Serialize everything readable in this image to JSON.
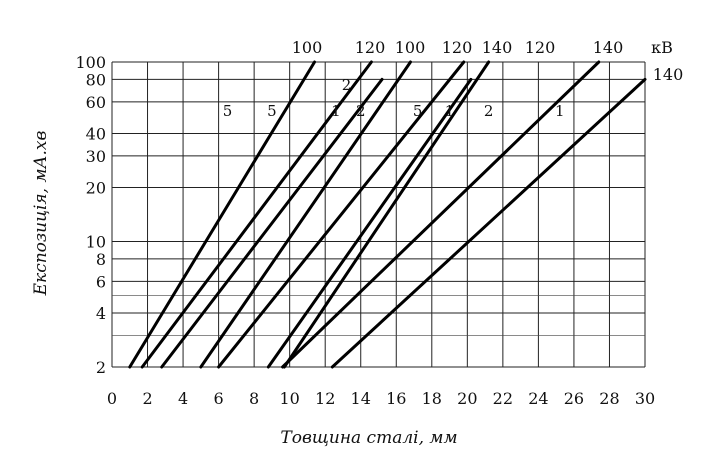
{
  "chart_data": {
    "type": "line",
    "xlabel": "Товщина сталі, мм",
    "ylabel": "Експозиція, мА.хв",
    "x_scale": "linear",
    "y_scale": "log",
    "xlim": [
      0,
      30
    ],
    "ylim": [
      2,
      100
    ],
    "grid": true,
    "x_ticks": [
      "0",
      "2",
      "4",
      "6",
      "8",
      "10",
      "12",
      "14",
      "16",
      "18",
      "20",
      "22",
      "24",
      "26",
      "28",
      "30"
    ],
    "y_ticks": [
      {
        "value": 2,
        "label": "2"
      },
      {
        "value": 4,
        "label": "4"
      },
      {
        "value": 6,
        "label": "6"
      },
      {
        "value": 8,
        "label": "8"
      },
      {
        "value": 10,
        "label": "10"
      },
      {
        "value": 20,
        "label": "20"
      },
      {
        "value": 30,
        "label": "30"
      },
      {
        "value": 40,
        "label": "40"
      },
      {
        "value": 60,
        "label": "60"
      },
      {
        "value": 80,
        "label": "80"
      },
      {
        "value": 100,
        "label": "100"
      }
    ],
    "kv_unit": "кВ",
    "series": [
      {
        "label_number": "5",
        "kv": "100",
        "points": [
          [
            1.0,
            2
          ],
          [
            11.4,
            100
          ]
        ]
      },
      {
        "label_number": "5",
        "kv": "120",
        "points": [
          [
            1.7,
            2
          ],
          [
            14.6,
            100
          ]
        ]
      },
      {
        "label_number": "1",
        "kv": "100",
        "points": [
          [
            5.0,
            2
          ],
          [
            16.8,
            100
          ]
        ]
      },
      {
        "label_number": "2",
        "kv": "100",
        "points": [
          [
            2.8,
            2
          ],
          [
            15.2,
            80
          ]
        ]
      },
      {
        "label_number": "5",
        "kv": "140",
        "points": [
          [
            6.0,
            2
          ],
          [
            19.8,
            100
          ]
        ]
      },
      {
        "label_number": "1",
        "kv": "120",
        "points": [
          [
            8.8,
            2
          ],
          [
            20.2,
            80
          ]
        ]
      },
      {
        "label_number": "2",
        "kv": "120",
        "points": [
          [
            9.7,
            2
          ],
          [
            21.2,
            100
          ]
        ]
      },
      {
        "label_number": "2",
        "kv": "140",
        "points": [
          [
            9.6,
            2
          ],
          [
            27.4,
            100
          ]
        ]
      },
      {
        "label_number": "1",
        "kv": "140",
        "points": [
          [
            12.4,
            2
          ],
          [
            30.0,
            80
          ]
        ]
      }
    ],
    "top_labels": [
      "100",
      "120",
      "100",
      "120",
      "140",
      "120",
      "140"
    ],
    "top_unit": "кВ",
    "right_label": "140",
    "curve_number_labels": [
      {
        "text": "5",
        "x": 6.5,
        "y": 50
      },
      {
        "text": "5",
        "x": 9.0,
        "y": 50
      },
      {
        "text": "2",
        "x": 13.2,
        "y": 70
      },
      {
        "text": "1",
        "x": 12.6,
        "y": 50
      },
      {
        "text": "2",
        "x": 14.0,
        "y": 50
      },
      {
        "text": "5",
        "x": 17.2,
        "y": 50
      },
      {
        "text": "1",
        "x": 19.0,
        "y": 50
      },
      {
        "text": "2",
        "x": 21.2,
        "y": 50
      },
      {
        "text": "1",
        "x": 25.2,
        "y": 50
      }
    ]
  }
}
